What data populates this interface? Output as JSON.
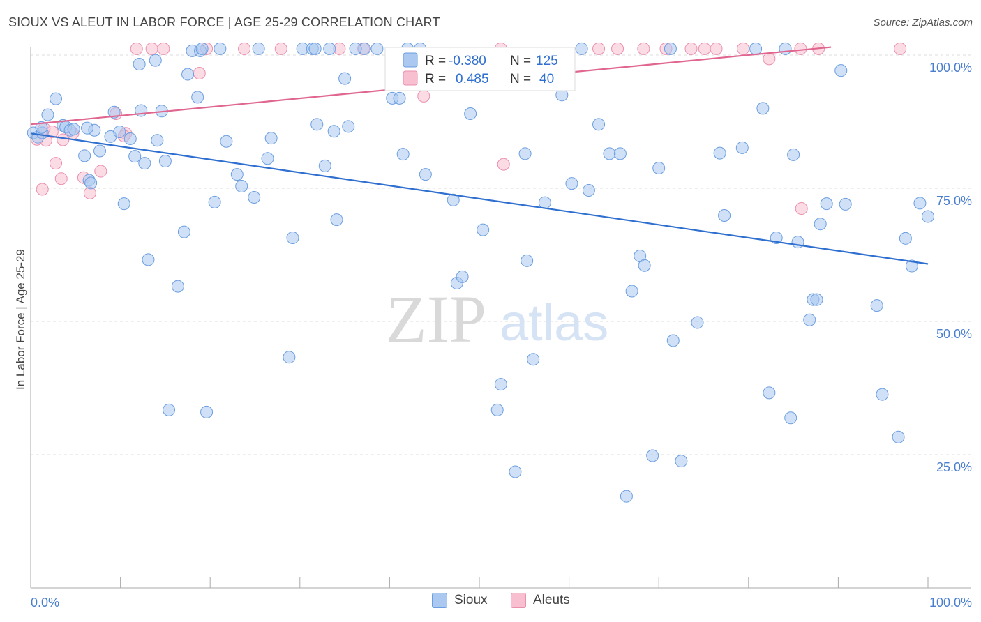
{
  "title": "SIOUX VS ALEUT IN LABOR FORCE | AGE 25-29 CORRELATION CHART",
  "source": "Source: ZipAtlas.com",
  "watermark": {
    "zip": "ZIP",
    "atlas": "atlas"
  },
  "colors": {
    "sioux_fill": "#aac8f0",
    "sioux_stroke": "#6b9ee0",
    "sioux_line": "#2f6fd0",
    "aleut_fill": "#f8bfd0",
    "aleut_stroke": "#ea8fad",
    "aleut_line": "#e06690",
    "tick": "#4a7fcf"
  },
  "legend_top": {
    "sioux": {
      "r_label": "R =",
      "r_value": "-0.380",
      "n_label": "N =",
      "n_value": "125"
    },
    "aleut": {
      "r_label": "R =",
      "r_value": "0.485",
      "n_label": "N =",
      "n_value": "40"
    }
  },
  "legend_bottom": {
    "sioux": "Sioux",
    "aleut": "Aleuts"
  },
  "chart_data": {
    "type": "scatter",
    "xlabel": "",
    "ylabel": "In Labor Force | Age 25-29",
    "xlim": [
      0,
      100
    ],
    "ylim": [
      0,
      102
    ],
    "x_tick_labels": [
      "0.0%",
      "100.0%"
    ],
    "y_ticks": [
      25,
      50,
      75,
      100
    ],
    "y_tick_labels": [
      "25.0%",
      "50.0%",
      "75.0%",
      "100.0%"
    ],
    "grid": "horizontal dashed",
    "legend": "top-center",
    "series": [
      {
        "name": "Sioux",
        "trend": {
          "x": [
            0,
            100
          ],
          "y": [
            85.3,
            60.8
          ]
        },
        "points": [
          [
            0.3,
            85.4
          ],
          [
            0.8,
            84.6
          ],
          [
            1.3,
            85.4
          ],
          [
            1.9,
            88.8
          ],
          [
            2.8,
            91.8
          ],
          [
            3.6,
            86.8
          ],
          [
            3.9,
            86.5
          ],
          [
            4.4,
            85.9
          ],
          [
            4.8,
            86.1
          ],
          [
            6.0,
            81.1
          ],
          [
            6.5,
            76.5
          ],
          [
            6.7,
            76.0
          ],
          [
            7.1,
            85.9
          ],
          [
            7.7,
            82.0
          ],
          [
            8.9,
            84.7
          ],
          [
            9.3,
            89.3
          ],
          [
            9.9,
            85.6
          ],
          [
            10.4,
            72.1
          ],
          [
            11.1,
            84.3
          ],
          [
            11.6,
            81.0
          ],
          [
            12.1,
            98.3
          ],
          [
            12.3,
            89.6
          ],
          [
            12.7,
            79.7
          ],
          [
            13.1,
            61.6
          ],
          [
            13.9,
            99.0
          ],
          [
            14.1,
            84.0
          ],
          [
            14.6,
            89.5
          ],
          [
            15.0,
            80.1
          ],
          [
            15.4,
            33.4
          ],
          [
            16.4,
            56.6
          ],
          [
            17.1,
            66.8
          ],
          [
            17.5,
            96.4
          ],
          [
            18.0,
            100.8
          ],
          [
            18.6,
            92.1
          ],
          [
            18.9,
            100.8
          ],
          [
            19.1,
            101.2
          ],
          [
            19.6,
            33.0
          ],
          [
            20.5,
            72.4
          ],
          [
            21.1,
            101.2
          ],
          [
            21.8,
            83.8
          ],
          [
            23.0,
            77.6
          ],
          [
            23.5,
            75.4
          ],
          [
            24.9,
            73.3
          ],
          [
            25.4,
            101.2
          ],
          [
            26.4,
            80.6
          ],
          [
            26.8,
            84.4
          ],
          [
            28.8,
            43.3
          ],
          [
            29.2,
            65.7
          ],
          [
            30.3,
            101.2
          ],
          [
            31.4,
            101.2
          ],
          [
            31.7,
            101.2
          ],
          [
            31.9,
            87.0
          ],
          [
            32.8,
            79.2
          ],
          [
            33.3,
            101.2
          ],
          [
            33.8,
            85.7
          ],
          [
            34.1,
            69.1
          ],
          [
            35.0,
            95.6
          ],
          [
            35.4,
            86.6
          ],
          [
            37.2,
            101.2
          ],
          [
            40.3,
            91.9
          ],
          [
            41.1,
            91.9
          ],
          [
            41.5,
            81.4
          ],
          [
            42.0,
            101.2
          ],
          [
            44.0,
            77.6
          ],
          [
            47.1,
            72.8
          ],
          [
            47.5,
            57.2
          ],
          [
            48.1,
            58.4
          ],
          [
            49.0,
            89.0
          ],
          [
            50.4,
            67.2
          ],
          [
            52.4,
            38.2
          ],
          [
            52.0,
            33.4
          ],
          [
            54.0,
            21.8
          ],
          [
            55.1,
            81.5
          ],
          [
            55.3,
            61.4
          ],
          [
            56.0,
            42.9
          ],
          [
            57.3,
            72.3
          ],
          [
            59.2,
            92.5
          ],
          [
            60.3,
            75.9
          ],
          [
            61.4,
            101.2
          ],
          [
            62.2,
            74.6
          ],
          [
            63.3,
            87.0
          ],
          [
            64.5,
            81.5
          ],
          [
            65.7,
            81.5
          ],
          [
            66.4,
            17.2
          ],
          [
            67.0,
            55.7
          ],
          [
            67.9,
            62.3
          ],
          [
            68.4,
            60.5
          ],
          [
            69.3,
            24.8
          ],
          [
            70.0,
            78.8
          ],
          [
            71.3,
            101.2
          ],
          [
            71.6,
            46.4
          ],
          [
            72.5,
            23.8
          ],
          [
            74.3,
            49.8
          ],
          [
            76.8,
            81.6
          ],
          [
            77.3,
            69.9
          ],
          [
            79.3,
            82.6
          ],
          [
            80.8,
            101.2
          ],
          [
            81.6,
            90.0
          ],
          [
            82.3,
            36.6
          ],
          [
            83.1,
            65.7
          ],
          [
            84.1,
            101.2
          ],
          [
            84.7,
            31.9
          ],
          [
            85.0,
            81.3
          ],
          [
            85.5,
            64.9
          ],
          [
            86.8,
            50.3
          ],
          [
            87.2,
            54.1
          ],
          [
            87.6,
            54.1
          ],
          [
            88.0,
            68.3
          ],
          [
            88.7,
            72.1
          ],
          [
            90.3,
            97.1
          ],
          [
            90.8,
            72.0
          ],
          [
            94.3,
            53.0
          ],
          [
            94.9,
            36.3
          ],
          [
            96.7,
            28.3
          ],
          [
            97.5,
            65.6
          ],
          [
            98.2,
            60.4
          ],
          [
            99.1,
            72.2
          ],
          [
            100.0,
            69.7
          ],
          [
            1.2,
            86.4
          ],
          [
            6.3,
            86.3
          ],
          [
            43.4,
            101.2
          ],
          [
            38.6,
            101.2
          ],
          [
            36.2,
            101.2
          ]
        ]
      },
      {
        "name": "Aleuts",
        "trend": {
          "x": [
            0,
            89.2
          ],
          "y": [
            87.0,
            101.5
          ]
        },
        "points": [
          [
            0.7,
            84.2
          ],
          [
            1.3,
            74.8
          ],
          [
            1.7,
            84.0
          ],
          [
            2.4,
            85.6
          ],
          [
            2.8,
            79.7
          ],
          [
            3.4,
            76.8
          ],
          [
            3.6,
            84.1
          ],
          [
            4.7,
            85.3
          ],
          [
            5.9,
            77.0
          ],
          [
            6.6,
            74.1
          ],
          [
            7.8,
            78.2
          ],
          [
            9.5,
            89.0
          ],
          [
            10.6,
            85.3
          ],
          [
            10.4,
            84.8
          ],
          [
            11.8,
            101.2
          ],
          [
            13.5,
            101.2
          ],
          [
            14.8,
            101.2
          ],
          [
            18.8,
            96.6
          ],
          [
            19.6,
            101.2
          ],
          [
            23.8,
            101.2
          ],
          [
            27.9,
            101.2
          ],
          [
            34.4,
            101.2
          ],
          [
            37.1,
            101.2
          ],
          [
            43.8,
            92.3
          ],
          [
            52.4,
            101.2
          ],
          [
            63.3,
            101.2
          ],
          [
            65.4,
            101.2
          ],
          [
            68.3,
            101.2
          ],
          [
            70.8,
            101.2
          ],
          [
            73.6,
            101.2
          ],
          [
            75.1,
            101.2
          ],
          [
            76.4,
            101.2
          ],
          [
            79.4,
            101.2
          ],
          [
            82.3,
            99.3
          ],
          [
            85.8,
            101.2
          ],
          [
            87.8,
            101.2
          ],
          [
            96.9,
            101.2
          ],
          [
            1.5,
            86.2
          ],
          [
            52.7,
            79.5
          ],
          [
            85.9,
            71.2
          ]
        ]
      }
    ]
  }
}
